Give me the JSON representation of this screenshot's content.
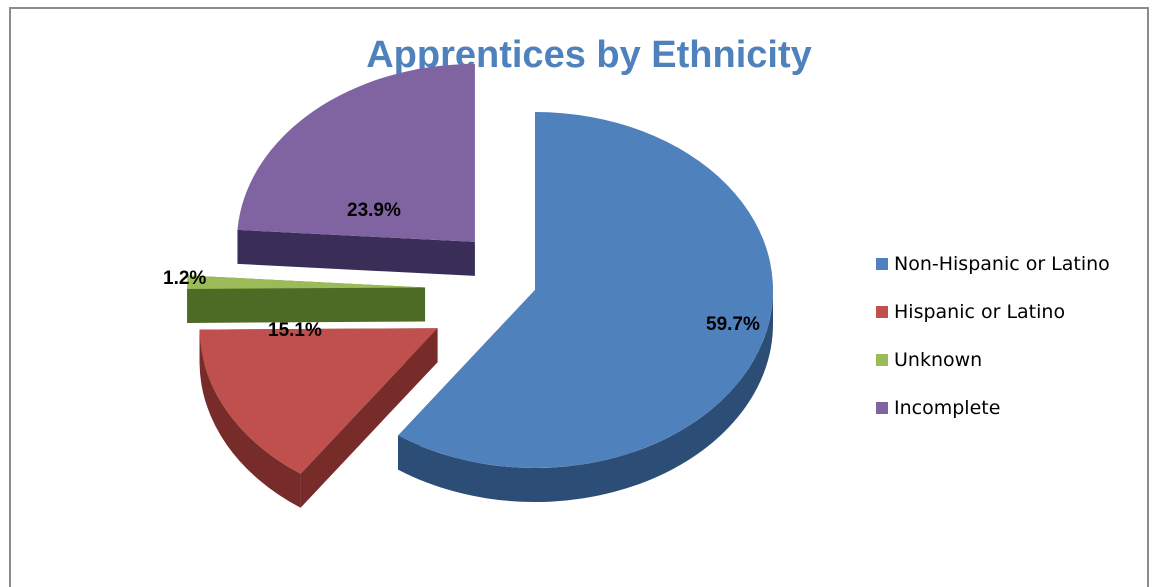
{
  "chart_data": {
    "type": "pie",
    "title": "Apprentices by Ethnicity",
    "categories": [
      "Non-Hispanic or Latino",
      "Hispanic or Latino",
      "Unknown",
      "Incomplete"
    ],
    "values": [
      59.7,
      15.1,
      1.2,
      23.9
    ],
    "labels": [
      "59.7%",
      "15.1%",
      "1.2%",
      "23.9%"
    ],
    "colors": [
      "#4f81bd",
      "#c0504d",
      "#9bbb59",
      "#8064a2"
    ],
    "side_colors": [
      "#2c4d75",
      "#772c2a",
      "#4e6b26",
      "#3a2d57"
    ],
    "exploded": true,
    "three_d": true,
    "legend_position": "right"
  }
}
